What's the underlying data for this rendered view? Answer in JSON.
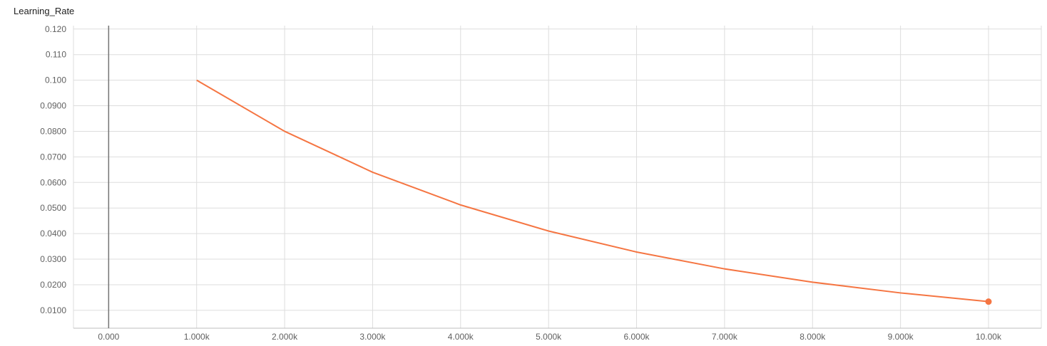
{
  "chart_data": {
    "type": "line",
    "title": "Learning_Rate",
    "xlabel": "",
    "ylabel": "",
    "xlim": [
      -400,
      10600
    ],
    "ylim": [
      0.003,
      0.123
    ],
    "x_ticks": [
      0,
      1000,
      2000,
      3000,
      4000,
      5000,
      6000,
      7000,
      8000,
      9000,
      10000
    ],
    "x_tick_labels": [
      "0.000",
      "1.000k",
      "2.000k",
      "3.000k",
      "4.000k",
      "5.000k",
      "6.000k",
      "7.000k",
      "8.000k",
      "9.000k",
      "10.00k"
    ],
    "y_ticks": [
      0.01,
      0.02,
      0.03,
      0.04,
      0.05,
      0.06,
      0.07,
      0.08,
      0.09,
      0.1,
      0.11,
      0.12
    ],
    "y_tick_labels": [
      "0.0100",
      "0.0200",
      "0.0300",
      "0.0400",
      "0.0500",
      "0.0600",
      "0.0700",
      "0.0800",
      "0.0900",
      "0.100",
      "0.110",
      "0.120"
    ],
    "grid": true,
    "series": [
      {
        "color": "#f57542",
        "x": [
          1000,
          2000,
          3000,
          4000,
          5000,
          6000,
          7000,
          8000,
          9000,
          10000
        ],
        "y": [
          0.1,
          0.08,
          0.064,
          0.0512,
          0.041,
          0.0328,
          0.0262,
          0.021,
          0.0168,
          0.0134
        ]
      }
    ],
    "gridline_color": "#dddddd",
    "zero_line_color": "#757575"
  }
}
